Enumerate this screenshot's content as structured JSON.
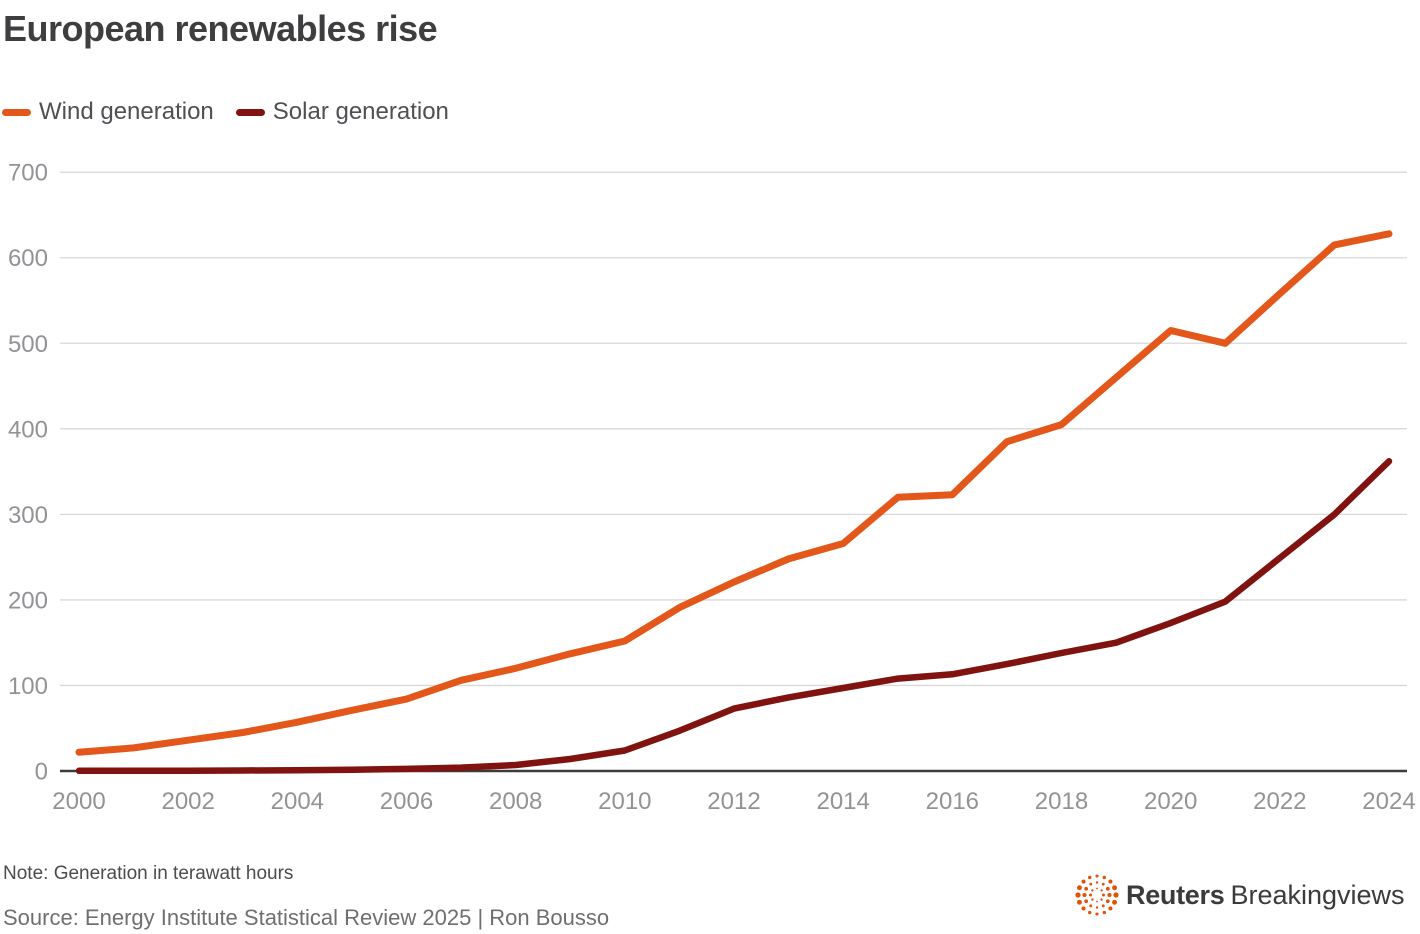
{
  "page": {
    "title": "European renewables rise",
    "note": "Note: Generation in terawatt hours",
    "source": "Source: Energy Institute Statistical Review 2025 | Ron Bousso",
    "logo": {
      "brand": "Reuters",
      "suffix": "Breakingviews"
    }
  },
  "chart_data": {
    "type": "line",
    "title": "European renewables rise",
    "ylabel": "",
    "xlabel": "",
    "unit": "terawatt hours",
    "grid": true,
    "legend_position": "top-left",
    "xlim": [
      2000,
      2024
    ],
    "ylim": [
      0,
      700
    ],
    "xticks": [
      2000,
      2002,
      2004,
      2006,
      2008,
      2010,
      2012,
      2014,
      2016,
      2018,
      2020,
      2022,
      2024
    ],
    "yticks": [
      0,
      100,
      200,
      300,
      400,
      500,
      600,
      700
    ],
    "x": [
      2000,
      2001,
      2002,
      2003,
      2004,
      2005,
      2006,
      2007,
      2008,
      2009,
      2010,
      2011,
      2012,
      2013,
      2014,
      2015,
      2016,
      2017,
      2018,
      2019,
      2020,
      2021,
      2022,
      2023,
      2024
    ],
    "series": [
      {
        "name": "Wind generation",
        "color": "#E4571A",
        "values": [
          22,
          27,
          36,
          45,
          57,
          71,
          84,
          106,
          120,
          137,
          152,
          191,
          221,
          248,
          266,
          320,
          323,
          385,
          405,
          460,
          515,
          500,
          558,
          615,
          628
        ]
      },
      {
        "name": "Solar generation",
        "color": "#80130F",
        "values": [
          0.2,
          0.3,
          0.4,
          0.6,
          0.9,
          1.5,
          2.5,
          4,
          7,
          14,
          24,
          47,
          73,
          86,
          97,
          108,
          113,
          125,
          138,
          150,
          173,
          198,
          249,
          300,
          362
        ]
      }
    ],
    "colors": {
      "gridline": "#d9d9d9",
      "zero_axis": "#3c3c3e",
      "tick_label": "#929396",
      "logo_orange": "#e0520a"
    }
  }
}
